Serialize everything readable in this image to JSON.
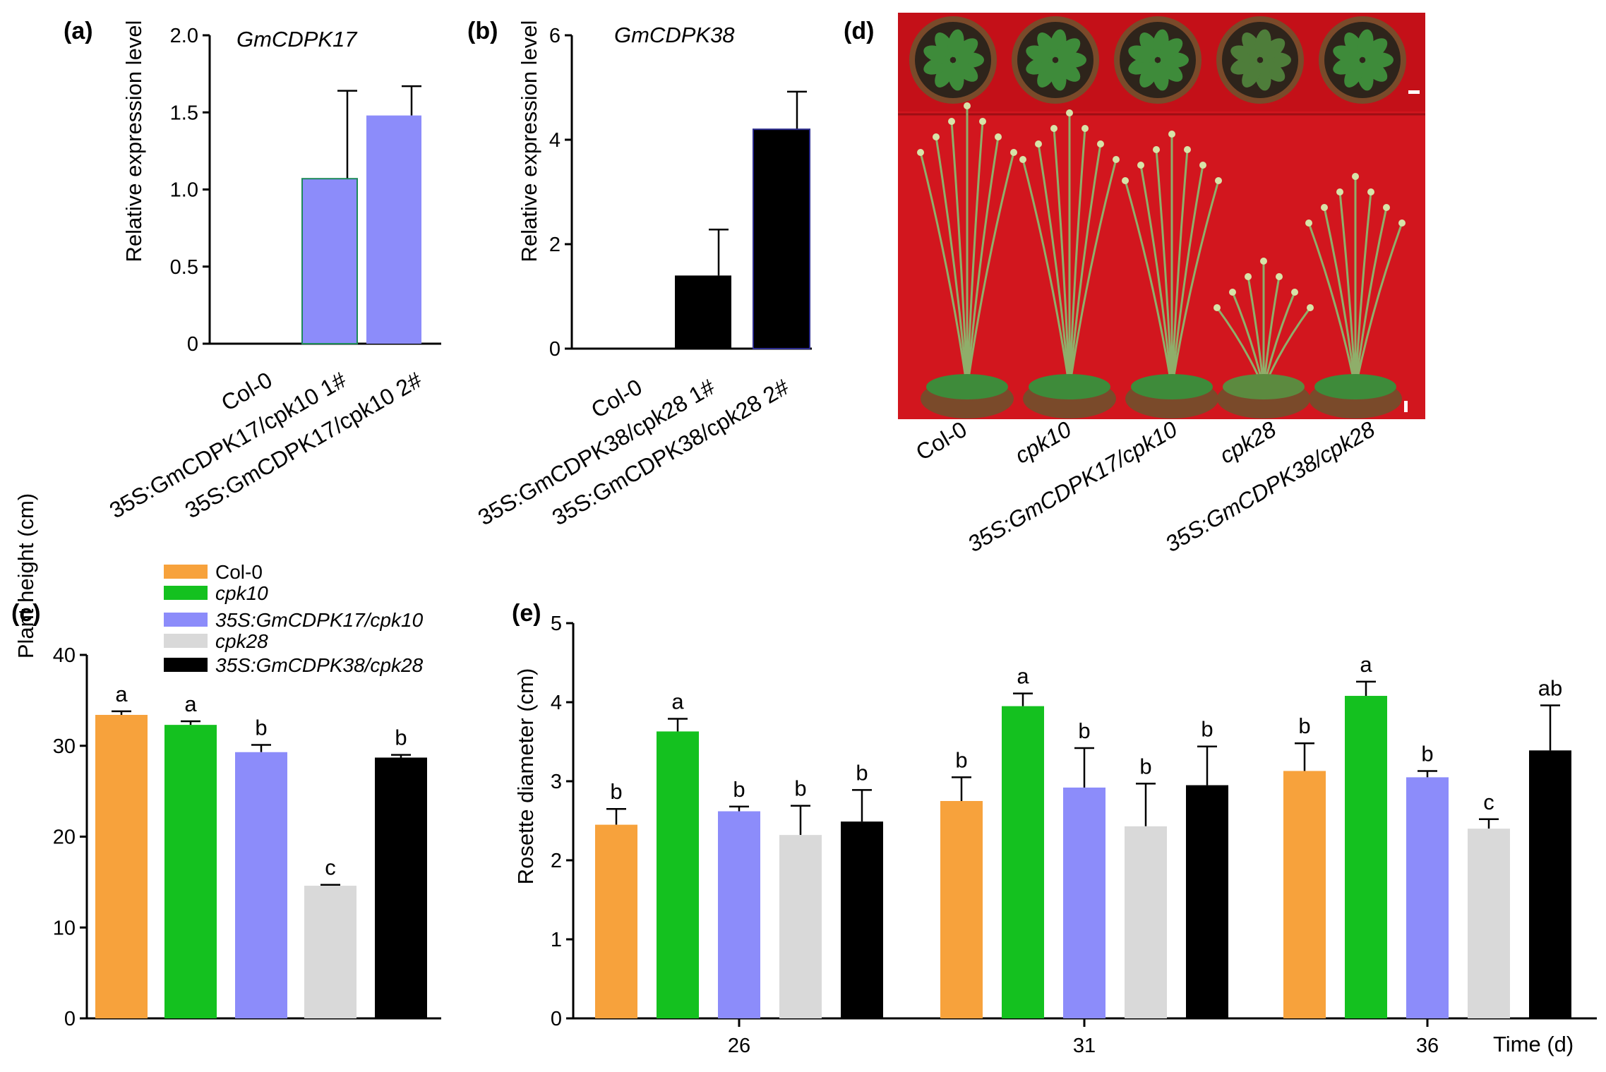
{
  "colors": {
    "col0": "#F7A23C",
    "cpk10": "#14C11F",
    "oe17": "#8C8CFA",
    "cpk28": "#D9D9D9",
    "oe38": "#000000",
    "photo_bg": "#D2161E"
  },
  "chart_data": [
    {
      "panel": "(a)",
      "type": "bar",
      "title": "GmCDPK17",
      "ylabel": "Relative expression level",
      "ylim": [
        0,
        2.0
      ],
      "yticks": [
        "0",
        "0.5",
        "1.0",
        "1.5",
        "2.0"
      ],
      "yticks_values": [
        0,
        0.5,
        1.0,
        1.5,
        2.0
      ],
      "categories": [
        "Col-0",
        "35S:GmCDPK17/cpk10 1#",
        "35S:GmCDPK17/cpk10 2#"
      ],
      "values": [
        0,
        1.07,
        1.48
      ],
      "errors": [
        0,
        0.57,
        0.19
      ]
    },
    {
      "panel": "(b)",
      "type": "bar",
      "title": "GmCDPK38",
      "ylabel": "Relative expression level",
      "ylim": [
        0,
        6
      ],
      "yticks": [
        "0",
        "2",
        "4",
        "6"
      ],
      "yticks_values": [
        0,
        2,
        4,
        6
      ],
      "categories": [
        "Col-0",
        "35S:GmCDPK38/cpk28 1#",
        "35S:GmCDPK38/cpk28 2#"
      ],
      "values": [
        0,
        1.4,
        4.2
      ],
      "errors": [
        0,
        0.88,
        0.72
      ]
    },
    {
      "panel": "(c)",
      "type": "bar",
      "ylabel": "Plant height (cm)",
      "ylim": [
        0,
        40
      ],
      "yticks": [
        "0",
        "10",
        "20",
        "30",
        "40"
      ],
      "yticks_values": [
        0,
        10,
        20,
        30,
        40
      ],
      "series": [
        {
          "name": "Col-0",
          "value": 33.4,
          "error": 0.4,
          "letter": "a"
        },
        {
          "name": "cpk10",
          "value": 32.3,
          "error": 0.4,
          "letter": "a"
        },
        {
          "name": "35S:GmCDPK17/cpk10",
          "value": 29.3,
          "error": 0.8,
          "letter": "b"
        },
        {
          "name": "cpk28",
          "value": 14.6,
          "error": 0.1,
          "letter": "c"
        },
        {
          "name": "35S:GmCDPK38/cpk28",
          "value": 28.7,
          "error": 0.3,
          "letter": "b"
        }
      ]
    },
    {
      "panel": "(e)",
      "type": "bar",
      "ylabel": "Rosette diameter (cm)",
      "xlabel": "Time (d)",
      "ylim": [
        0,
        5
      ],
      "yticks": [
        "0",
        "1",
        "2",
        "3",
        "4",
        "5"
      ],
      "yticks_values": [
        0,
        1,
        2,
        3,
        4,
        5
      ],
      "categories": [
        "26",
        "31",
        "36"
      ],
      "series": [
        {
          "name": "Col-0",
          "values": [
            2.45,
            2.75,
            3.13
          ],
          "errors": [
            0.2,
            0.3,
            0.35
          ],
          "letters": [
            "b",
            "b",
            "b"
          ]
        },
        {
          "name": "cpk10",
          "values": [
            3.63,
            3.95,
            4.08
          ],
          "errors": [
            0.16,
            0.16,
            0.18
          ],
          "letters": [
            "a",
            "a",
            "a"
          ]
        },
        {
          "name": "35S:GmCDPK17/cpk10",
          "values": [
            2.62,
            2.92,
            3.05
          ],
          "errors": [
            0.06,
            0.5,
            0.08
          ],
          "letters": [
            "b",
            "b",
            "b"
          ]
        },
        {
          "name": "cpk28",
          "values": [
            2.32,
            2.43,
            2.4
          ],
          "errors": [
            0.37,
            0.54,
            0.12
          ],
          "letters": [
            "b",
            "b",
            "c"
          ]
        },
        {
          "name": "35S:GmCDPK38/cpk28",
          "values": [
            2.49,
            2.95,
            3.39
          ],
          "errors": [
            0.4,
            0.49,
            0.57
          ],
          "letters": [
            "b",
            "b",
            "ab"
          ]
        }
      ]
    }
  ],
  "legend": {
    "entries": [
      "Col-0",
      "cpk10",
      "35S:GmCDPK17/cpk10",
      "cpk28",
      "35S:GmCDPK38/cpk28"
    ],
    "italic": [
      false,
      true,
      true,
      true,
      true
    ]
  },
  "panel_d": {
    "label": "(d)",
    "labels": [
      "Col-0",
      "cpk10",
      "35S:GmCDPK17/cpk10",
      "cpk28",
      "35S:GmCDPK38/cpk28"
    ]
  }
}
